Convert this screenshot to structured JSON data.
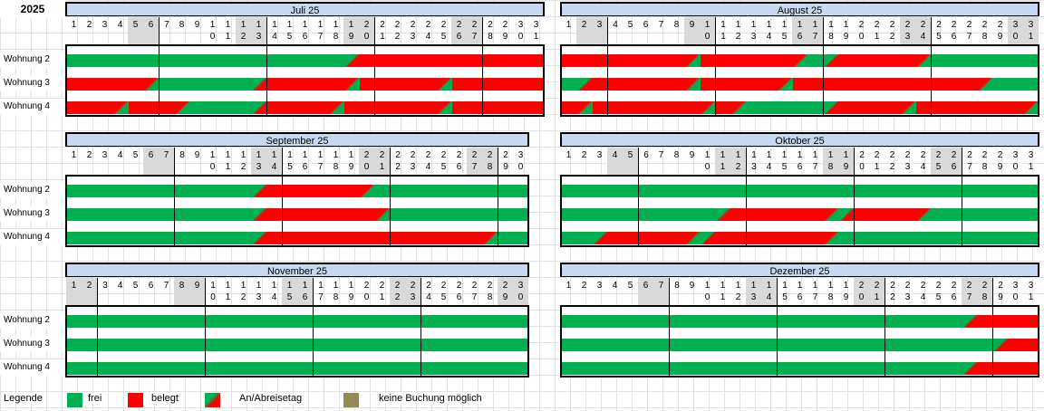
{
  "year": "2025",
  "rows": [
    "Wohnung 2",
    "Wohnung 3",
    "Wohnung 4"
  ],
  "colors": {
    "frei": "#00b050",
    "belegt": "#ff0000",
    "keine_buchung": "#948a54",
    "header": "#c6d9f1",
    "weekend": "#d9d9d9"
  },
  "months": [
    {
      "title": "Juli 25",
      "days": 31,
      "firstWeekday": 2
    },
    {
      "title": "August 25",
      "days": 31,
      "firstWeekday": 5
    },
    {
      "title": "September 25",
      "days": 30,
      "firstWeekday": 1
    },
    {
      "title": "Oktober 25",
      "days": 31,
      "firstWeekday": 3
    },
    {
      "title": "November 25",
      "days": 30,
      "firstWeekday": 6
    },
    {
      "title": "Dezember 25",
      "days": 31,
      "firstWeekday": 1
    }
  ],
  "legend": {
    "title": "Legende",
    "items": [
      {
        "label": "frei",
        "color": "#00b050",
        "type": "free"
      },
      {
        "label": "belegt",
        "color": "#ff0000",
        "type": "booked"
      },
      {
        "label": "An/Abreisetag",
        "color": "",
        "type": "change"
      },
      {
        "label": "keine Buchung möglich",
        "color": "#948a54",
        "type": "blocked"
      }
    ]
  },
  "bookings": [
    [
      [
        [
          1,
          18,
          "F"
        ],
        [
          19,
          19,
          "FB"
        ],
        [
          20,
          31,
          "B"
        ]
      ],
      [
        [
          1,
          5,
          "B"
        ],
        [
          6,
          6,
          "BF"
        ],
        [
          7,
          12,
          "F"
        ],
        [
          13,
          13,
          "FB"
        ],
        [
          14,
          18,
          "B"
        ],
        [
          19,
          19,
          "BF"
        ],
        [
          20,
          24,
          "B"
        ],
        [
          25,
          25,
          "BF"
        ],
        [
          26,
          31,
          "B"
        ]
      ],
      [
        [
          1,
          3,
          "B"
        ],
        [
          4,
          4,
          "BF"
        ],
        [
          5,
          7,
          "B"
        ],
        [
          8,
          8,
          "BF"
        ],
        [
          9,
          12,
          "F"
        ],
        [
          13,
          13,
          "FB"
        ],
        [
          14,
          17,
          "B"
        ],
        [
          18,
          18,
          "BF"
        ],
        [
          19,
          24,
          "B"
        ],
        [
          25,
          25,
          "BF"
        ],
        [
          26,
          31,
          "B"
        ]
      ]
    ],
    [
      [
        [
          1,
          8,
          "B"
        ],
        [
          9,
          9,
          "BF"
        ],
        [
          10,
          15,
          "B"
        ],
        [
          16,
          16,
          "BF"
        ],
        [
          17,
          17,
          "F"
        ],
        [
          18,
          18,
          "FB"
        ],
        [
          19,
          23,
          "B"
        ],
        [
          24,
          24,
          "BF"
        ],
        [
          25,
          31,
          "F"
        ]
      ],
      [
        [
          1,
          1,
          "F"
        ],
        [
          2,
          2,
          "FB"
        ],
        [
          3,
          8,
          "B"
        ],
        [
          9,
          9,
          "BF"
        ],
        [
          10,
          14,
          "B"
        ],
        [
          15,
          15,
          "BF"
        ],
        [
          16,
          27,
          "B"
        ],
        [
          28,
          28,
          "BF"
        ],
        [
          29,
          31,
          "F"
        ]
      ],
      [
        [
          1,
          1,
          "B"
        ],
        [
          2,
          2,
          "BF"
        ],
        [
          3,
          9,
          "B"
        ],
        [
          10,
          10,
          "BF"
        ],
        [
          11,
          11,
          "B"
        ],
        [
          12,
          12,
          "BF"
        ],
        [
          13,
          17,
          "F"
        ],
        [
          18,
          18,
          "FB"
        ],
        [
          19,
          22,
          "B"
        ],
        [
          23,
          23,
          "BF"
        ],
        [
          24,
          30,
          "B"
        ],
        [
          31,
          31,
          "BF"
        ]
      ]
    ],
    [
      [
        [
          1,
          12,
          "F"
        ],
        [
          13,
          13,
          "FB"
        ],
        [
          14,
          19,
          "B"
        ],
        [
          20,
          20,
          "BF"
        ],
        [
          21,
          30,
          "F"
        ]
      ],
      [
        [
          1,
          12,
          "F"
        ],
        [
          13,
          13,
          "FB"
        ],
        [
          14,
          20,
          "B"
        ],
        [
          21,
          21,
          "BF"
        ],
        [
          22,
          30,
          "F"
        ]
      ],
      [
        [
          1,
          12,
          "F"
        ],
        [
          13,
          13,
          "FB"
        ],
        [
          14,
          27,
          "B"
        ],
        [
          28,
          28,
          "BF"
        ],
        [
          29,
          30,
          "F"
        ]
      ]
    ],
    [
      [
        [
          1,
          31,
          "F"
        ]
      ],
      [
        [
          1,
          10,
          "F"
        ],
        [
          11,
          11,
          "FB"
        ],
        [
          12,
          17,
          "B"
        ],
        [
          18,
          18,
          "BF"
        ],
        [
          19,
          19,
          "FB"
        ],
        [
          20,
          23,
          "B"
        ],
        [
          24,
          24,
          "BF"
        ],
        [
          25,
          31,
          "F"
        ]
      ],
      [
        [
          1,
          2,
          "F"
        ],
        [
          3,
          3,
          "FB"
        ],
        [
          4,
          8,
          "B"
        ],
        [
          9,
          9,
          "BF"
        ],
        [
          10,
          10,
          "FB"
        ],
        [
          11,
          17,
          "B"
        ],
        [
          18,
          18,
          "BF"
        ],
        [
          19,
          31,
          "F"
        ]
      ]
    ],
    [
      [
        [
          1,
          30,
          "F"
        ]
      ],
      [
        [
          1,
          30,
          "F"
        ]
      ],
      [
        [
          1,
          30,
          "F"
        ]
      ]
    ],
    [
      [
        [
          1,
          26,
          "F"
        ],
        [
          27,
          27,
          "FB"
        ],
        [
          28,
          31,
          "B"
        ]
      ],
      [
        [
          1,
          28,
          "F"
        ],
        [
          29,
          29,
          "FB"
        ],
        [
          30,
          31,
          "B"
        ]
      ],
      [
        [
          1,
          26,
          "F"
        ],
        [
          27,
          27,
          "FB"
        ],
        [
          28,
          31,
          "B"
        ]
      ]
    ]
  ]
}
